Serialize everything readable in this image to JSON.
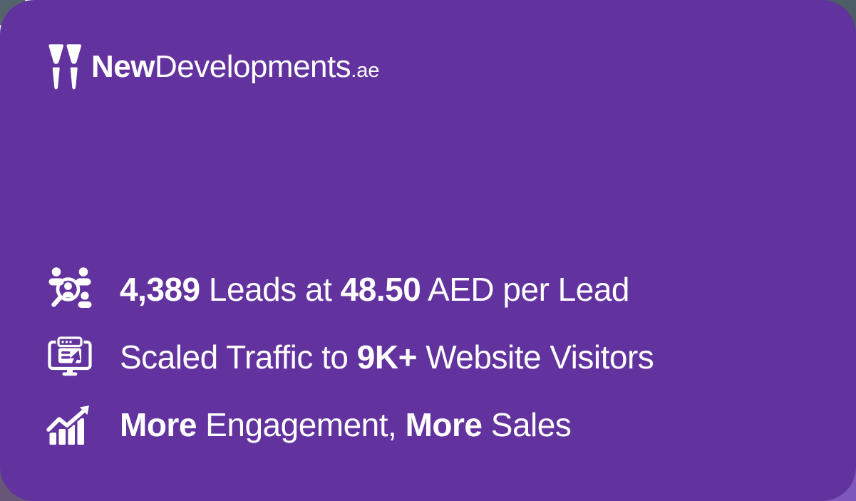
{
  "colors": {
    "card_purple": "#62339e",
    "backdrop_top_right": "#4d5d66",
    "backdrop_top_left": "#ffffff",
    "backdrop_top_left_notch": "#55646c",
    "backdrop_bottom_left": "#675677",
    "backdrop_bottom_right": "#7d57b9",
    "text": "#ffffff"
  },
  "logo": {
    "icon": "twin-pillars-logo-icon",
    "brand_bold": "New",
    "brand_light": "Developments",
    "domain_suffix": ".ae"
  },
  "stats": [
    {
      "icon": "leads-search-icon",
      "segments": [
        {
          "text": "4,389",
          "bold": true
        },
        {
          "text": " Leads at ",
          "bold": false
        },
        {
          "text": "48.50",
          "bold": true
        },
        {
          "text": " AED per Lead",
          "bold": false
        }
      ]
    },
    {
      "icon": "website-traffic-icon",
      "segments": [
        {
          "text": "Scaled Traffic to ",
          "bold": false
        },
        {
          "text": "9K+",
          "bold": true
        },
        {
          "text": " Website Visitors",
          "bold": false
        }
      ]
    },
    {
      "icon": "growth-chart-icon",
      "segments": [
        {
          "text": "More",
          "bold": true
        },
        {
          "text": " Engagement, ",
          "bold": false
        },
        {
          "text": "More",
          "bold": true
        },
        {
          "text": " Sales",
          "bold": false
        }
      ]
    }
  ]
}
